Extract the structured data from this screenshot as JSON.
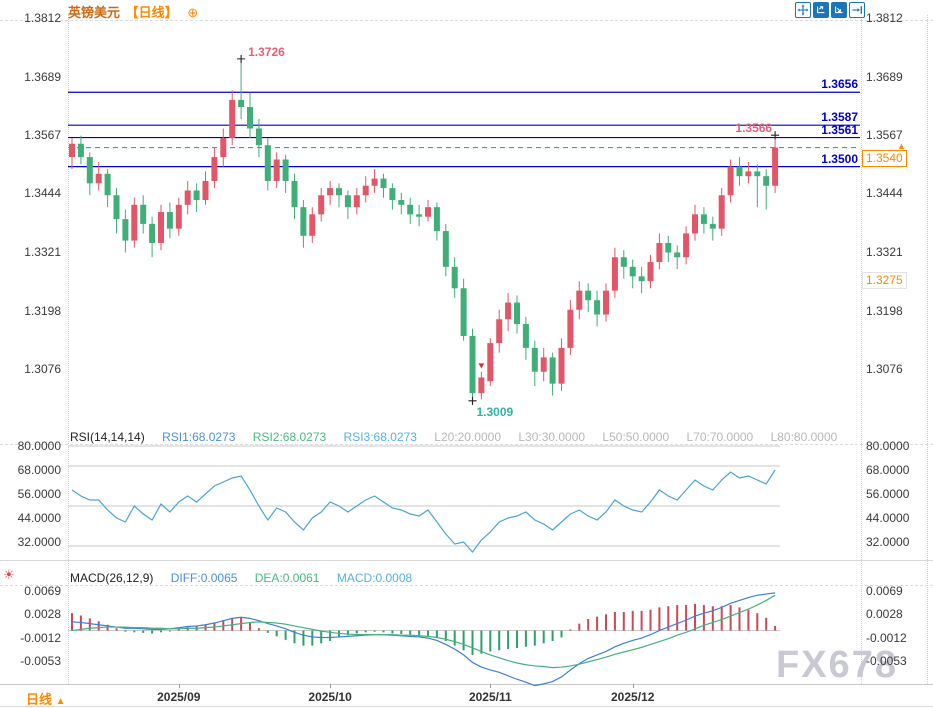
{
  "title": {
    "symbol": "英镑美元",
    "period": "【日线】",
    "add_button": "⊕"
  },
  "toolbar": {
    "icons": [
      {
        "name": "pan-icon"
      },
      {
        "name": "zoom-x-icon"
      },
      {
        "name": "zoom-y-icon"
      },
      {
        "name": "go-latest-icon"
      }
    ]
  },
  "watermark": "FX678",
  "footer": {
    "period_label": "日线",
    "up_arrow": "▲"
  },
  "indicator_settings_icon": "☀",
  "chart_data": [
    {
      "type": "candlestick",
      "title": "英镑美元 日线",
      "ylim": [
        1.2952,
        1.3818
      ],
      "grid": false,
      "y_ticks": [
        "1.3812",
        "1.3689",
        "1.3567",
        "1.3444",
        "1.3321",
        "1.3198",
        "1.3076"
      ],
      "y_tick_values": [
        1.3812,
        1.3689,
        1.3567,
        1.3444,
        1.3321,
        1.3198,
        1.3076
      ],
      "x_ticks": [
        {
          "label": "2025/09",
          "index": 12
        },
        {
          "label": "2025/10",
          "index": 29
        },
        {
          "label": "2025/11",
          "index": 47
        },
        {
          "label": "2025/12",
          "index": 63
        }
      ],
      "up_color": "#e25667",
      "down_color": "#3fae78",
      "ohlc_1e4": [
        [
          13520,
          13560,
          13495,
          13548
        ],
        [
          13548,
          13565,
          13505,
          13520
        ],
        [
          13520,
          13530,
          13440,
          13465
        ],
        [
          13465,
          13510,
          13450,
          13485
        ],
        [
          13485,
          13495,
          13415,
          13440
        ],
        [
          13440,
          13455,
          13360,
          13390
        ],
        [
          13390,
          13410,
          13320,
          13345
        ],
        [
          13345,
          13435,
          13330,
          13420
        ],
        [
          13420,
          13440,
          13360,
          13380
        ],
        [
          13380,
          13395,
          13310,
          13340
        ],
        [
          13340,
          13420,
          13325,
          13405
        ],
        [
          13405,
          13425,
          13350,
          13370
        ],
        [
          13370,
          13435,
          13355,
          13420
        ],
        [
          13420,
          13470,
          13400,
          13450
        ],
        [
          13450,
          13465,
          13405,
          13430
        ],
        [
          13430,
          13490,
          13420,
          13470
        ],
        [
          13470,
          13540,
          13455,
          13520
        ],
        [
          13520,
          13580,
          13500,
          13560
        ],
        [
          13560,
          13660,
          13545,
          13640
        ],
        [
          13640,
          13726,
          13600,
          13625
        ],
        [
          13625,
          13655,
          13560,
          13580
        ],
        [
          13580,
          13600,
          13520,
          13545
        ],
        [
          13545,
          13560,
          13450,
          13470
        ],
        [
          13470,
          13530,
          13455,
          13515
        ],
        [
          13515,
          13525,
          13445,
          13470
        ],
        [
          13470,
          13485,
          13390,
          13415
        ],
        [
          13415,
          13430,
          13330,
          13355
        ],
        [
          13355,
          13415,
          13340,
          13400
        ],
        [
          13400,
          13455,
          13385,
          13440
        ],
        [
          13440,
          13470,
          13420,
          13455
        ],
        [
          13455,
          13465,
          13415,
          13440
        ],
        [
          13440,
          13450,
          13390,
          13415
        ],
        [
          13415,
          13455,
          13400,
          13440
        ],
        [
          13440,
          13480,
          13425,
          13460
        ],
        [
          13460,
          13495,
          13445,
          13475
        ],
        [
          13475,
          13485,
          13435,
          13455
        ],
        [
          13455,
          13465,
          13410,
          13430
        ],
        [
          13430,
          13445,
          13400,
          13420
        ],
        [
          13420,
          13435,
          13380,
          13400
        ],
        [
          13400,
          13420,
          13375,
          13395
        ],
        [
          13395,
          13430,
          13385,
          13415
        ],
        [
          13415,
          13425,
          13345,
          13365
        ],
        [
          13365,
          13380,
          13270,
          13290
        ],
        [
          13290,
          13310,
          13225,
          13245
        ],
        [
          13245,
          13265,
          13135,
          13145
        ],
        [
          13145,
          13160,
          13009,
          13025
        ],
        [
          13025,
          13070,
          13012,
          13058
        ],
        [
          13050,
          13140,
          13040,
          13130
        ],
        [
          13130,
          13200,
          13110,
          13180
        ],
        [
          13180,
          13235,
          13155,
          13215
        ],
        [
          13215,
          13230,
          13150,
          13170
        ],
        [
          13170,
          13185,
          13095,
          13120
        ],
        [
          13120,
          13135,
          13040,
          13070
        ],
        [
          13070,
          13120,
          13050,
          13100
        ],
        [
          13100,
          13110,
          13020,
          13045
        ],
        [
          13045,
          13140,
          13030,
          13120
        ],
        [
          13120,
          13220,
          13105,
          13200
        ],
        [
          13200,
          13260,
          13180,
          13240
        ],
        [
          13240,
          13255,
          13195,
          13220
        ],
        [
          13220,
          13240,
          13165,
          13190
        ],
        [
          13190,
          13255,
          13175,
          13240
        ],
        [
          13240,
          13330,
          13225,
          13310
        ],
        [
          13310,
          13325,
          13265,
          13290
        ],
        [
          13290,
          13305,
          13245,
          13270
        ],
        [
          13270,
          13290,
          13235,
          13260
        ],
        [
          13260,
          13315,
          13245,
          13300
        ],
        [
          13300,
          13360,
          13285,
          13340
        ],
        [
          13340,
          13355,
          13300,
          13320
        ],
        [
          13320,
          13335,
          13285,
          13310
        ],
        [
          13310,
          13375,
          13295,
          13360
        ],
        [
          13360,
          13420,
          13345,
          13400
        ],
        [
          13400,
          13415,
          13360,
          13380
        ],
        [
          13380,
          13395,
          13345,
          13370
        ],
        [
          13370,
          13455,
          13355,
          13440
        ],
        [
          13440,
          13515,
          13425,
          13500
        ],
        [
          13500,
          13520,
          13460,
          13480
        ],
        [
          13480,
          13510,
          13465,
          13490
        ],
        [
          13490,
          13505,
          13415,
          13480
        ],
        [
          13480,
          13495,
          13410,
          13460
        ],
        [
          13460,
          13566,
          13445,
          13540
        ]
      ],
      "hlines": [
        {
          "price": 1.3656,
          "label": "1.3656"
        },
        {
          "price": 1.3587,
          "label": "1.3587"
        },
        {
          "price": 1.3561,
          "label": "1.3561"
        },
        {
          "price": 1.35,
          "label": "1.3500"
        }
      ],
      "hline_color": "#0000cc",
      "current_price_line": {
        "price": 1.354,
        "label": "1.3540",
        "style": "dashed",
        "color": "#2e9bf0"
      },
      "side_tag": {
        "price": 1.3275,
        "label": "1.3275"
      },
      "annotations": [
        {
          "kind": "swing-high",
          "label": "1.3726",
          "index": 19,
          "price": 1.3726,
          "color": "#e85d78"
        },
        {
          "kind": "swing-low",
          "label": "1.3009",
          "index": 45,
          "price": 1.3009,
          "color": "#2fb5a0"
        },
        {
          "kind": "last-high",
          "label": "1.3566",
          "index": 79,
          "price": 1.3566,
          "color": "#e85d78"
        },
        {
          "kind": "down-marker",
          "index": 46,
          "price": 1.3075,
          "color": "#e03030"
        }
      ]
    },
    {
      "type": "line",
      "name": "RSI",
      "ylim": [
        24,
        80.5
      ],
      "y_ticks": [
        "80.0000",
        "68.0000",
        "56.0000",
        "44.0000",
        "32.0000"
      ],
      "y_tick_values": [
        80,
        68,
        56,
        44,
        32
      ],
      "gridlines": [
        80,
        70,
        50,
        30
      ],
      "line_color": "#4aa5d5",
      "legend": [
        {
          "text": "RSI(14,14,14)",
          "color": "#222222"
        },
        {
          "text": "RSI1:68.0273",
          "color": "#4a90d9"
        },
        {
          "text": "RSI2:68.0273",
          "color": "#4cb87e"
        },
        {
          "text": "RSI3:68.0273",
          "color": "#53b3e4"
        },
        {
          "text": "L20:20.0000",
          "color": "#b8b8b8"
        },
        {
          "text": "L30:30.0000",
          "color": "#b8b8b8"
        },
        {
          "text": "L50:50.0000",
          "color": "#b8b8b8"
        },
        {
          "text": "L70:70.0000",
          "color": "#b8b8b8"
        },
        {
          "text": "L80:80.0000",
          "color": "#b8b8b8"
        }
      ],
      "values": [
        58,
        55,
        53,
        53,
        48,
        44,
        42,
        50,
        46,
        43,
        51,
        47,
        52,
        55,
        52,
        56,
        60,
        62,
        64,
        65,
        58,
        50,
        43,
        49,
        47,
        42,
        38,
        44,
        47,
        52,
        50,
        47,
        50,
        53,
        55,
        52,
        49,
        48,
        46,
        45,
        48,
        42,
        36,
        31,
        32,
        27,
        33,
        37,
        42,
        44,
        45,
        47,
        43,
        41,
        38,
        42,
        46,
        48,
        45,
        43,
        47,
        53,
        50,
        48,
        47,
        52,
        58,
        55,
        53,
        58,
        63,
        60,
        58,
        63,
        67,
        64,
        65,
        63,
        61,
        68
      ]
    },
    {
      "type": "macd",
      "name": "MACD",
      "ylim": [
        -0.00922,
        0.00786
      ],
      "y_ticks": [
        "0.0069",
        "0.0028",
        "-0.0012",
        "-0.0053"
      ],
      "y_tick_values": [
        0.0069,
        0.0028,
        -0.0012,
        -0.0053
      ],
      "diff_color": "#3e7fd8",
      "dea_color": "#45b083",
      "hist_up_color": "#cc4758",
      "hist_down_color": "#2fa06a",
      "legend": [
        {
          "text": "MACD(26,12,9)",
          "color": "#222222"
        },
        {
          "text": "DIFF:0.0065",
          "color": "#4a90d9"
        },
        {
          "text": "DEA:0.0061",
          "color": "#4cb87e"
        },
        {
          "text": "MACD:0.0008",
          "color": "#53b3e4"
        }
      ],
      "diff_1e4": [
        15,
        14,
        12,
        10,
        8,
        6,
        4,
        4,
        3,
        2,
        2,
        3,
        5,
        7,
        8,
        10,
        13,
        17,
        21,
        23,
        21,
        17,
        12,
        8,
        3,
        -3,
        -8,
        -11,
        -12,
        -12,
        -11,
        -10,
        -9,
        -8,
        -7,
        -7,
        -8,
        -9,
        -10,
        -11,
        -13,
        -17,
        -24,
        -32,
        -42,
        -55,
        -63,
        -68,
        -72,
        -78,
        -84,
        -89,
        -95,
        -92,
        -88,
        -80,
        -68,
        -57,
        -48,
        -42,
        -36,
        -28,
        -22,
        -17,
        -13,
        -7,
        0,
        6,
        12,
        18,
        25,
        30,
        34,
        40,
        47,
        52,
        57,
        61,
        63,
        65
      ],
      "dea_1e4": [
        0,
        2,
        4,
        5,
        6,
        6,
        6,
        5,
        5,
        4,
        4,
        3,
        3,
        4,
        4,
        5,
        6,
        8,
        10,
        12,
        14,
        15,
        14,
        13,
        11,
        8,
        5,
        2,
        -1,
        -3,
        -5,
        -6,
        -7,
        -7,
        -7,
        -7,
        -7,
        -8,
        -8,
        -9,
        -10,
        -12,
        -15,
        -19,
        -24,
        -30,
        -36,
        -42,
        -47,
        -52,
        -56,
        -59,
        -61,
        -62,
        -64,
        -63,
        -61,
        -58,
        -54,
        -50,
        -46,
        -41,
        -37,
        -33,
        -29,
        -24,
        -19,
        -14,
        -8,
        -3,
        3,
        9,
        14,
        19,
        25,
        31,
        37,
        44,
        52,
        61
      ],
      "hist_1e4": [
        30,
        26,
        21,
        16,
        10,
        4,
        -2,
        -3,
        -4,
        -5,
        -3,
        -1,
        3,
        6,
        8,
        10,
        14,
        18,
        22,
        22,
        14,
        4,
        -4,
        -10,
        -16,
        -22,
        -26,
        -26,
        -22,
        -18,
        -12,
        -8,
        -5,
        -3,
        -2,
        -3,
        -5,
        -6,
        -7,
        -8,
        -9,
        -12,
        -18,
        -26,
        -34,
        -42,
        -40,
        -36,
        -34,
        -32,
        -30,
        -28,
        -26,
        -22,
        -18,
        -12,
        2,
        12,
        20,
        24,
        28,
        32,
        32,
        34,
        34,
        36,
        40,
        42,
        44,
        44,
        46,
        44,
        42,
        42,
        44,
        40,
        36,
        30,
        22,
        8
      ]
    }
  ]
}
